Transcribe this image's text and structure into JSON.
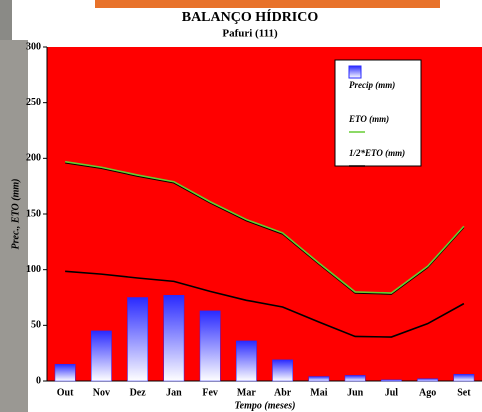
{
  "chart_data": {
    "type": "bar-line",
    "title": "BALANÇO HÍDRICO",
    "subtitle": "Pafuri (111)",
    "y_label": "Prec., ETO (mm)",
    "x_label": "Tempo (meses)",
    "categories": [
      "Out",
      "Nov",
      "Dez",
      "Jan",
      "Fev",
      "Mar",
      "Abr",
      "Mai",
      "Jun",
      "Jul",
      "Ago",
      "Set"
    ],
    "series": [
      {
        "name": "Precip (mm)",
        "kind": "bar",
        "color": "#2a2aff",
        "values": [
          15,
          45,
          75,
          77,
          63,
          36,
          19,
          4,
          5,
          1,
          2,
          6
        ]
      },
      {
        "name": "ETO (mm)",
        "kind": "line",
        "color": "#66cc33",
        "values": [
          197,
          192,
          185,
          179,
          161,
          145,
          133,
          106,
          80,
          79,
          103,
          139
        ]
      },
      {
        "name": "1/2*ETO (mm)",
        "kind": "line",
        "color": "#000000",
        "values": [
          98.5,
          96,
          92.5,
          89.5,
          80.5,
          72.5,
          66.5,
          53,
          40,
          39.5,
          51.5,
          69.5
        ]
      }
    ],
    "ylim": [
      0,
      300
    ],
    "yticks": [
      0,
      50,
      100,
      150,
      200,
      250,
      300
    ],
    "plot_color": "#ff0000"
  }
}
